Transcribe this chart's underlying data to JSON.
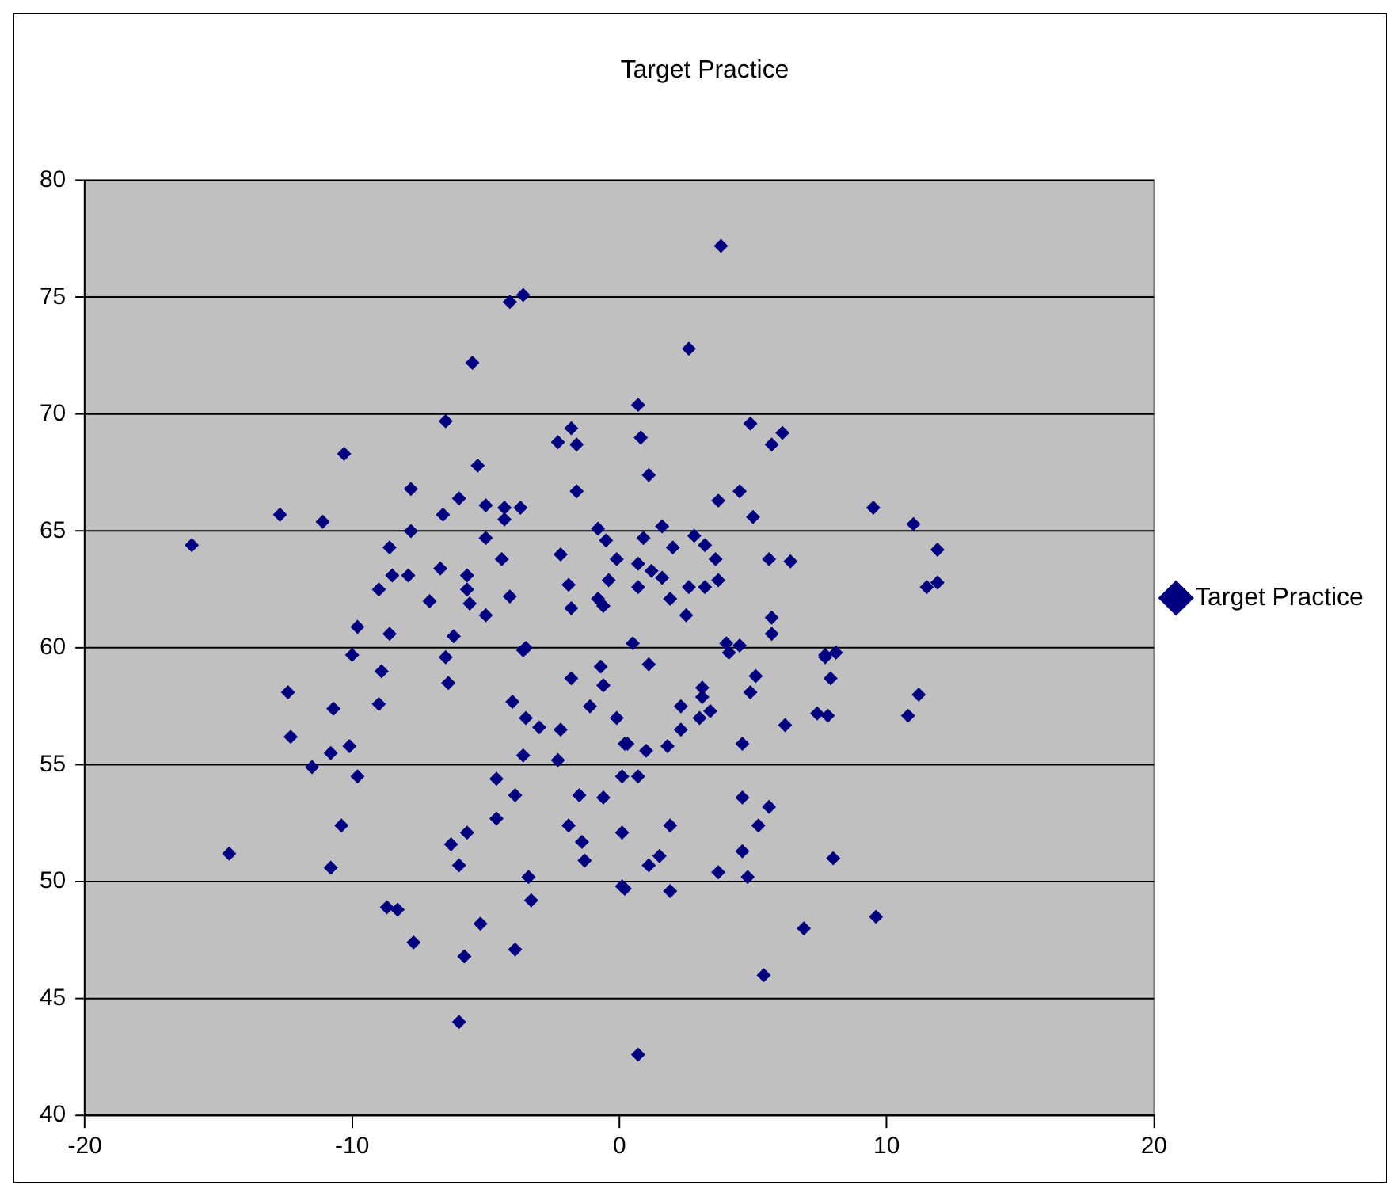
{
  "chart_data": {
    "type": "scatter",
    "title": "Target Practice",
    "legend": "right",
    "grid": "y",
    "marker": "diamond",
    "xlim": [
      -20,
      20
    ],
    "xticks": [
      -20,
      -10,
      0,
      10,
      20
    ],
    "ylim": [
      40,
      80
    ],
    "yticks": [
      40,
      45,
      50,
      55,
      60,
      65,
      70,
      75,
      80
    ],
    "series": [
      {
        "name": "Target Practice",
        "color": "#000080",
        "x": [
          -16.0,
          -12.7,
          -11.1,
          -10.3,
          -8.6,
          -7.8,
          -7.8,
          -9.0,
          -8.5,
          -7.9,
          -9.8,
          -8.6,
          -7.1,
          -6.7,
          -6.5,
          -5.5,
          -6.6,
          -6.0,
          -5.3,
          -5.0,
          -4.3,
          -3.7,
          -4.3,
          -5.0,
          -4.4,
          -5.7,
          -5.7,
          -5.6,
          -5.0,
          -4.1,
          -6.2,
          -4.1,
          -3.6,
          -2.2,
          -1.9,
          -1.8,
          -2.3,
          -1.8,
          -1.6,
          -1.6,
          -0.8,
          -0.5,
          -0.1,
          -0.4,
          -0.8,
          -0.6,
          -3.5,
          3.8,
          2.6,
          0.7,
          0.8,
          1.1,
          4.9,
          6.1,
          5.7,
          3.7,
          4.5,
          5.0,
          9.5,
          11.0,
          11.9,
          11.5,
          11.9,
          0.9,
          1.6,
          2.0,
          2.8,
          3.2,
          3.6,
          0.7,
          1.2,
          1.6,
          0.7,
          2.6,
          3.2,
          3.7,
          1.9,
          2.5,
          5.6,
          6.4,
          5.7,
          5.7,
          4.0,
          4.5,
          0.5,
          7.7,
          8.1,
          -10.0,
          -8.9,
          -12.4,
          -10.7,
          -9.0,
          -12.3,
          -10.8,
          -10.1,
          -11.5,
          -9.8,
          -10.4,
          -14.6,
          -10.8,
          -6.5,
          -6.4,
          -3.6,
          -4.0,
          -3.5,
          -3.0,
          -2.2,
          -3.6,
          -2.3,
          -4.6,
          -3.9,
          -1.5,
          -0.6,
          -4.6,
          -5.7,
          -6.3,
          -6.0,
          -1.9,
          -1.4,
          -1.3,
          0.1,
          -3.4,
          -3.3,
          -8.7,
          -8.3,
          -5.2,
          -7.7,
          -5.8,
          -3.9,
          -6.0,
          -1.8,
          -1.1,
          -0.6,
          -0.1,
          -0.7,
          0.2,
          0.1,
          0.1,
          0.7,
          1.1,
          0.2,
          1.9,
          1.9,
          1.1,
          1.5,
          0.7,
          0.3,
          1.0,
          1.8,
          2.3,
          2.3,
          3.1,
          3.0,
          3.4,
          3.1,
          4.6,
          4.9,
          5.1,
          4.1,
          6.2,
          7.4,
          7.8,
          7.9,
          7.7,
          11.2,
          10.8,
          4.6,
          5.6,
          5.2,
          4.6,
          3.7,
          4.8,
          8.0,
          9.6,
          6.9,
          5.4
        ],
        "values": [
          64.4,
          65.7,
          65.4,
          68.3,
          64.3,
          66.8,
          65.0,
          62.5,
          63.1,
          63.1,
          60.9,
          60.6,
          62.0,
          63.4,
          69.7,
          72.2,
          65.7,
          66.4,
          67.8,
          66.1,
          66.0,
          66.0,
          65.5,
          64.7,
          63.8,
          63.1,
          62.5,
          61.9,
          61.4,
          62.2,
          60.5,
          74.8,
          75.1,
          64.0,
          62.7,
          61.7,
          68.8,
          69.4,
          68.7,
          66.7,
          65.1,
          64.6,
          63.8,
          62.9,
          62.1,
          61.8,
          60.0,
          77.2,
          72.8,
          70.4,
          69.0,
          67.4,
          69.6,
          69.2,
          68.7,
          66.3,
          66.7,
          65.6,
          66.0,
          65.3,
          64.2,
          62.6,
          62.8,
          64.7,
          65.2,
          64.3,
          64.8,
          64.4,
          63.8,
          63.6,
          63.3,
          63.0,
          62.6,
          62.6,
          62.6,
          62.9,
          62.1,
          61.4,
          63.8,
          63.7,
          61.3,
          60.6,
          60.2,
          60.1,
          60.2,
          59.7,
          59.8,
          59.7,
          59.0,
          58.1,
          57.4,
          57.6,
          56.2,
          55.5,
          55.8,
          54.9,
          54.5,
          52.4,
          51.2,
          50.6,
          59.6,
          58.5,
          59.9,
          57.7,
          57.0,
          56.6,
          56.5,
          55.4,
          55.2,
          54.4,
          53.7,
          53.7,
          53.6,
          52.7,
          52.1,
          51.6,
          50.7,
          52.4,
          51.7,
          50.9,
          52.1,
          50.2,
          49.2,
          48.9,
          48.8,
          48.2,
          47.4,
          46.8,
          47.1,
          44.0,
          58.7,
          57.5,
          58.4,
          57.0,
          59.2,
          55.9,
          54.5,
          49.8,
          42.6,
          59.3,
          49.7,
          52.4,
          49.6,
          50.7,
          51.1,
          54.5,
          55.9,
          55.6,
          55.8,
          56.5,
          57.5,
          58.3,
          57.0,
          57.3,
          57.9,
          55.9,
          58.1,
          58.8,
          59.8,
          56.7,
          57.2,
          57.1,
          58.7,
          59.6,
          58.0,
          57.1,
          53.6,
          53.2,
          52.4,
          51.3,
          50.4,
          50.2,
          51.0,
          48.5,
          48.0,
          46.0
        ]
      }
    ]
  }
}
